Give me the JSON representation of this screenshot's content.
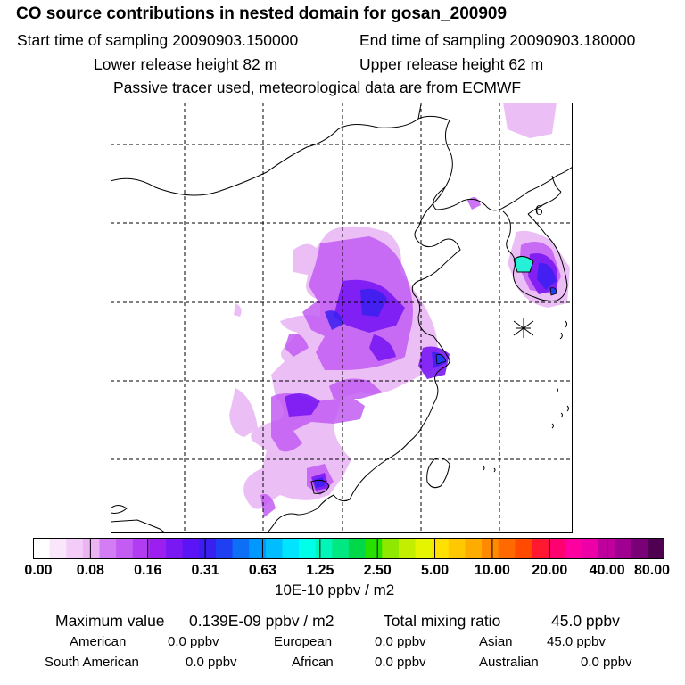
{
  "header": {
    "title": "CO  source contributions in nested domain for gosan_200909",
    "start_time": "Start time of sampling 20090903.150000",
    "end_time": "End time of sampling 20090903.180000",
    "lower_height": "Lower release height   82 m",
    "upper_height": "Upper release height   62 m",
    "tracer_note": "Passive tracer used, meteorological data are from ECMWF"
  },
  "map": {
    "day_label": "6",
    "receptor_symbol": "asterisk",
    "plume_colors": {
      "light": "#e9b8f5",
      "mid": "#b445f0",
      "strong": "#7a18f4",
      "high": "#3a20f0",
      "peak": "#27f0d8"
    }
  },
  "colorbar": {
    "colors": [
      "#ffffff",
      "#fae6fb",
      "#f3cdf7",
      "#ebb4f3",
      "#d27df3",
      "#c25cf3",
      "#b13cf2",
      "#9d1ff0",
      "#7a18f4",
      "#5a14f6",
      "#3a20f0",
      "#1e3ff2",
      "#0c6ff6",
      "#0097ff",
      "#00bdff",
      "#00e4ff",
      "#00ffe9",
      "#00f5b7",
      "#00e882",
      "#00d84a",
      "#28e000",
      "#8ee800",
      "#c4ee00",
      "#e6f400",
      "#ffe000",
      "#ffc800",
      "#ffac00",
      "#ff8a00",
      "#ff6a00",
      "#ff4a00",
      "#ff1830",
      "#ff0070",
      "#ff00a0",
      "#ee00a8",
      "#c0009c",
      "#a00090",
      "#7a0078",
      "#500050"
    ],
    "ticks": [
      "0.00",
      "0.08",
      "0.16",
      "0.31",
      "0.63",
      "1.25",
      "2.50",
      "5.00",
      "10.00",
      "20.00",
      "40.00",
      "80.00"
    ],
    "units": "10E-10 ppbv / m2"
  },
  "summary": {
    "max_label": "Maximum value",
    "max_value": "0.139E-09 ppbv / m2",
    "total_label": "Total mixing ratio",
    "total_value": "45.0 ppbv",
    "sources": [
      {
        "name": "American",
        "value": "0.0 ppbv"
      },
      {
        "name": "European",
        "value": "0.0 ppbv"
      },
      {
        "name": "Asian",
        "value": "45.0 ppbv"
      },
      {
        "name": "South American",
        "value": "0.0 ppbv"
      },
      {
        "name": "African",
        "value": "0.0 ppbv"
      },
      {
        "name": "Australian",
        "value": "0.0 ppbv"
      }
    ]
  }
}
